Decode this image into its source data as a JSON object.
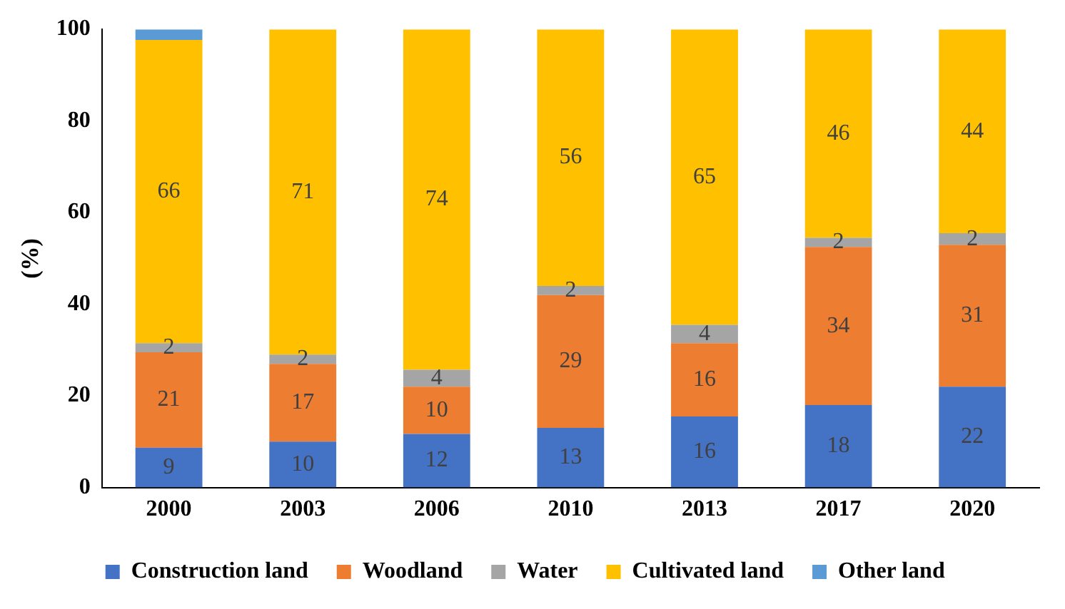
{
  "chart_data": {
    "type": "bar",
    "stacked": true,
    "ylabel": "(%)",
    "categories": [
      "2000",
      "2003",
      "2006",
      "2010",
      "2013",
      "2017",
      "2020"
    ],
    "ylim": [
      0,
      100
    ],
    "yticks": [
      0,
      20,
      40,
      60,
      80,
      100
    ],
    "grid": false,
    "legend": "bottom",
    "series": [
      {
        "name": "Construction land",
        "color": "#4472c4",
        "values": [
          8.7,
          10,
          11.7,
          13,
          15.5,
          18,
          22
        ],
        "value_labels": [
          "9",
          "10",
          "12",
          "13",
          "16",
          "18",
          "22"
        ]
      },
      {
        "name": "Woodland",
        "color": "#ed7d31",
        "values": [
          20.8,
          17,
          10.3,
          29,
          16,
          34.5,
          31
        ],
        "value_labels": [
          "21",
          "17",
          "10",
          "29",
          "16",
          "34",
          "31"
        ]
      },
      {
        "name": "Water",
        "color": "#a5a5a5",
        "values": [
          2,
          2,
          3.7,
          2,
          4,
          2,
          2.5
        ],
        "value_labels": [
          "2",
          "2",
          "4",
          "2",
          "4",
          "2",
          "2"
        ]
      },
      {
        "name": "Cultivated land",
        "color": "#ffc000",
        "values": [
          66.2,
          71,
          74.3,
          56,
          64.5,
          45.5,
          44.5
        ],
        "value_labels": [
          "66",
          "71",
          "74",
          "56",
          "65",
          "46",
          "44"
        ]
      },
      {
        "name": "Other land",
        "color": "#5b9bd5",
        "values": [
          2.3,
          0,
          0,
          0,
          0,
          0,
          0
        ],
        "value_labels": [
          null,
          null,
          null,
          null,
          null,
          null,
          null
        ]
      }
    ]
  }
}
